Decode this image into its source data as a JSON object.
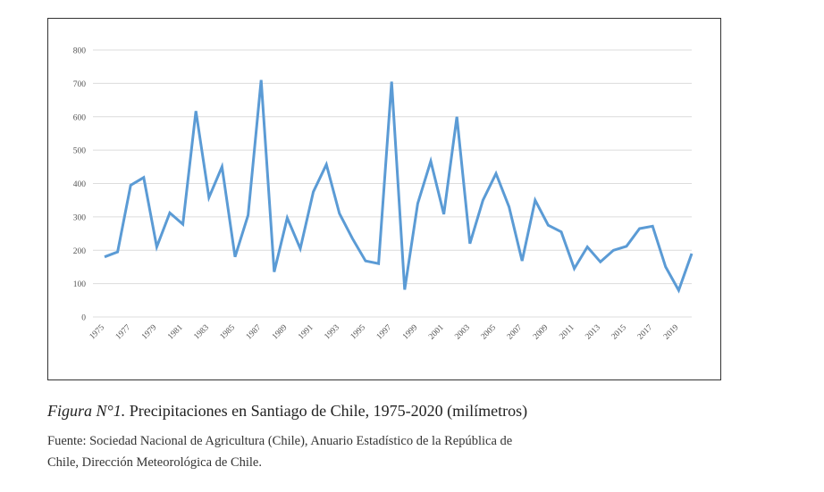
{
  "chart_data": {
    "type": "line",
    "title": "",
    "xlabel": "",
    "ylabel": "",
    "ylim": [
      0,
      800
    ],
    "yticks": [
      "0",
      "100",
      "200",
      "300",
      "400",
      "500",
      "600",
      "700",
      "800"
    ],
    "grid": true,
    "line_color": "#5b9bd5",
    "x": [
      1975,
      1976,
      1977,
      1978,
      1979,
      1980,
      1981,
      1982,
      1983,
      1984,
      1985,
      1986,
      1987,
      1988,
      1989,
      1990,
      1991,
      1992,
      1993,
      1994,
      1995,
      1996,
      1997,
      1998,
      1999,
      2000,
      2001,
      2002,
      2003,
      2004,
      2005,
      2006,
      2007,
      2008,
      2009,
      2010,
      2011,
      2012,
      2013,
      2014,
      2015,
      2016,
      2017,
      2018,
      2019,
      2020
    ],
    "xtick_labels": [
      "1975",
      "1977",
      "1979",
      "1981",
      "1983",
      "1985",
      "1987",
      "1989",
      "1991",
      "1993",
      "1995",
      "1997",
      "1999",
      "2001",
      "2003",
      "2005",
      "2007",
      "2009",
      "2011",
      "2013",
      "2015",
      "2017",
      "2019"
    ],
    "series": [
      {
        "name": "Precipitaciones",
        "values": [
          180,
          195,
          395,
          418,
          210,
          312,
          278,
          617,
          358,
          450,
          180,
          305,
          710,
          135,
          297,
          205,
          375,
          457,
          310,
          235,
          168,
          160,
          705,
          82,
          340,
          467,
          308,
          600,
          220,
          350,
          430,
          330,
          168,
          350,
          275,
          255,
          145,
          210,
          165,
          200,
          212,
          265,
          272,
          150,
          80,
          190
        ]
      }
    ]
  },
  "caption": {
    "label": "Figura N°1.",
    "text": " Precipitaciones en Santiago de Chile, 1975-2020 (milímetros)",
    "source_line1": "Fuente: Sociedad Nacional de Agricultura (Chile), Anuario Estadístico de la República de",
    "source_line2": "Chile, Dirección Meteorológica de Chile."
  }
}
